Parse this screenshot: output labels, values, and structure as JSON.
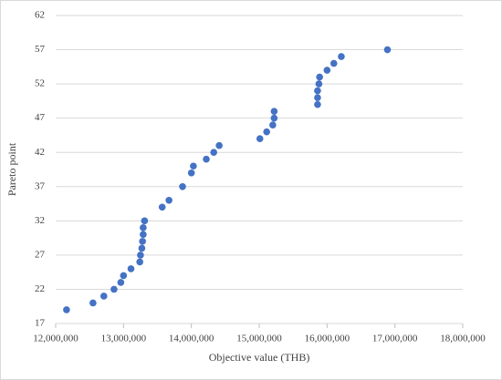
{
  "chart_data": {
    "type": "scatter",
    "x_label": "Objective value (THB)",
    "y_label": "Pareto point",
    "color": "#4472c4",
    "grid": true,
    "x": [
      12160000,
      12550000,
      12710000,
      12860000,
      12960000,
      13000000,
      13110000,
      13240000,
      13250000,
      13270000,
      13280000,
      13290000,
      13290000,
      13310000,
      13570000,
      13670000,
      13870000,
      14000000,
      14030000,
      14220000,
      14330000,
      14410000,
      15010000,
      15110000,
      15200000,
      15220000,
      15220000,
      15860000,
      15860000,
      15860000,
      15880000,
      15890000,
      16000000,
      16100000,
      16210000,
      16890000
    ],
    "values": [
      19,
      20,
      21,
      22,
      23,
      24,
      25,
      26,
      27,
      28,
      29,
      30,
      31,
      32,
      34,
      35,
      37,
      39,
      40,
      41,
      42,
      43,
      44,
      45,
      46,
      47,
      48,
      49,
      50,
      51,
      52,
      53,
      54,
      55,
      56,
      57
    ],
    "xlim": [
      12000000,
      18000000
    ],
    "xticks": [
      {
        "value": 12000000,
        "label": "12,000,000"
      },
      {
        "value": 13000000,
        "label": "13,000,000"
      },
      {
        "value": 14000000,
        "label": "14,000,000"
      },
      {
        "value": 15000000,
        "label": "15,000,000"
      },
      {
        "value": 16000000,
        "label": "16,000,000"
      },
      {
        "value": 17000000,
        "label": "17,000,000"
      },
      {
        "value": 18000000,
        "label": "18,000,000"
      }
    ],
    "ylim": [
      17,
      62
    ],
    "yticks": [
      17,
      22,
      27,
      32,
      37,
      42,
      47,
      52,
      57,
      62
    ]
  }
}
